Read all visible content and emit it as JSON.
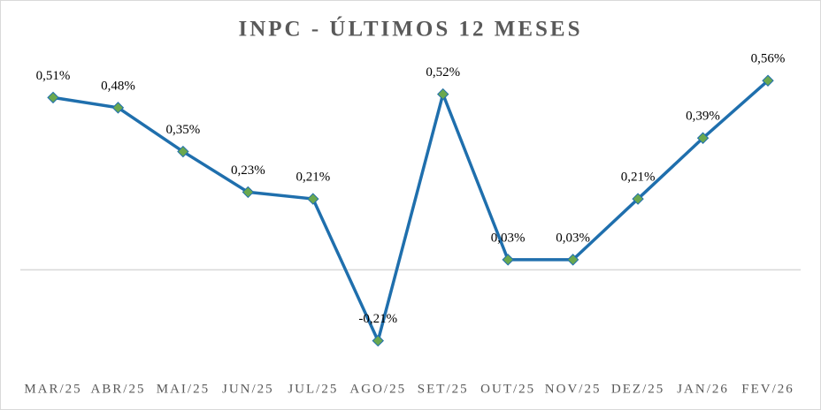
{
  "chart_data": {
    "type": "line",
    "title": "INPC - ÚLTIMOS 12 MESES",
    "categories": [
      "MAR/25",
      "ABR/25",
      "MAI/25",
      "JUN/25",
      "JUL/25",
      "AGO/25",
      "SET/25",
      "OUT/25",
      "NOV/25",
      "DEZ/25",
      "JAN/26",
      "FEV/26"
    ],
    "series": [
      {
        "name": "INPC",
        "color": "#1f6fad",
        "marker_color": "#6aa84f",
        "values": [
          0.51,
          0.48,
          0.35,
          0.23,
          0.21,
          -0.21,
          0.52,
          0.03,
          0.03,
          0.21,
          0.39,
          0.56
        ],
        "value_labels": [
          "0,51%",
          "0,48%",
          "0,35%",
          "0,23%",
          "0,21%",
          "-0,21%",
          "0,52%",
          "0,03%",
          "0,03%",
          "0,21%",
          "0,39%",
          "0,56%"
        ]
      }
    ],
    "ylim": [
      -0.3,
      0.6
    ]
  }
}
